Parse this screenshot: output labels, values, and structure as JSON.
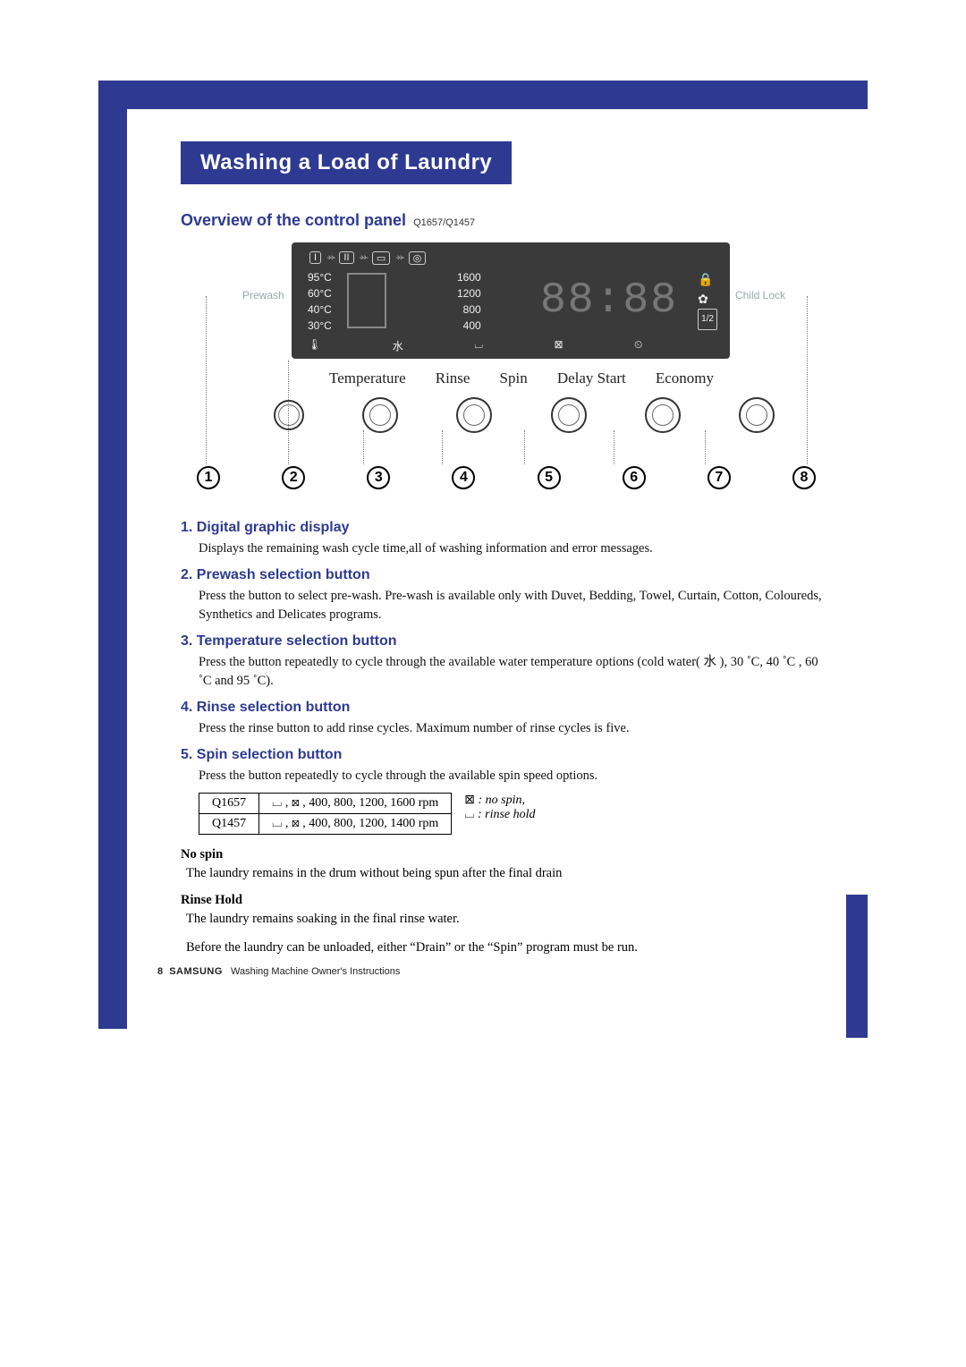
{
  "colors": {
    "brand": "#2e3a92",
    "display_bg": "#3a3a3a",
    "display_fg": "#f0f0f0"
  },
  "title": "Washing a Load of Laundry",
  "subtitle": "Overview of the control panel",
  "models": "Q1657/Q1457",
  "panel": {
    "prewash_label": "Prewash",
    "childlock_label": "Child Lock",
    "phase_icons": [
      "I",
      "II",
      "▭",
      "◎"
    ],
    "temperatures": [
      "95°C",
      "60°C",
      "40°C",
      "30°C"
    ],
    "spin_speeds": [
      "1600",
      "1200",
      "800",
      "400"
    ],
    "clock_text": "88:88",
    "half_load_icon": "1/2",
    "button_labels": [
      "Temperature",
      "Rinse",
      "Spin",
      "Delay Start",
      "Economy"
    ],
    "callout_numbers": [
      "1",
      "2",
      "3",
      "4",
      "5",
      "6",
      "7",
      "8"
    ]
  },
  "sections": [
    {
      "num": "1.",
      "title": "Digital graphic display",
      "body": "Displays the remaining wash cycle time,all of washing information and error messages."
    },
    {
      "num": "2.",
      "title": "Prewash selection button",
      "body": "Press the button to select pre-wash. Pre-wash is available only with Duvet, Bedding, Towel, Curtain, Cotton, Coloureds, Synthetics and Delicates programs."
    },
    {
      "num": "3.",
      "title": "Temperature selection button",
      "body": "Press the button  repeatedly to cycle through the available water temperature options (cold water( ⽔ ), 30 ˚C, 40 ˚C , 60 ˚C and 95 ˚C)."
    },
    {
      "num": "4.",
      "title": "Rinse selection button",
      "body": "Press the rinse button to add rinse cycles. Maximum number of rinse cycles is five."
    },
    {
      "num": "5.",
      "title": "Spin selection button",
      "body": "Press the button repeatedly to cycle through the available spin speed options."
    }
  ],
  "spin_table": {
    "rows": [
      [
        "Q1657",
        "⌴ , ⊠ , 400, 800, 1200, 1600 rpm"
      ],
      [
        "Q1457",
        "⌴ , ⊠ , 400, 800, 1200, 1400 rpm"
      ]
    ],
    "legend": [
      {
        "sym": "⊠",
        "text": " : no spin,"
      },
      {
        "sym": "⌴",
        "text": " : rinse hold"
      }
    ]
  },
  "nospin_head": "No spin",
  "nospin_body": "The laundry remains in the drum without being spun after the final drain",
  "rinsehold_head": "Rinse Hold",
  "rinsehold_body1": "The laundry remains soaking in the final rinse water.",
  "rinsehold_body2": "Before the laundry can be unloaded, either “Drain” or the “Spin” program must be run.",
  "footer": {
    "page_no": "8",
    "brand": "SAMSUNG",
    "text": "Washing Machine Owner's Instructions"
  }
}
